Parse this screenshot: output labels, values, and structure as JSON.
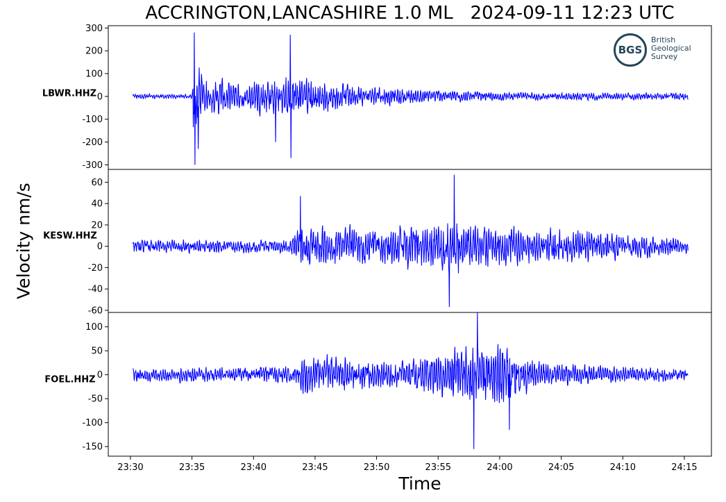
{
  "chart_data": {
    "type": "line",
    "title": "ACCRINGTON,LANCASHIRE 1.0 ML   2024-09-11 12:23 UTC",
    "xlabel": "Time",
    "ylabel": "Velocity nm/s",
    "x_ticks": [
      "23:30",
      "23:35",
      "23:40",
      "23:45",
      "23:50",
      "23:55",
      "24:00",
      "24:05",
      "24:10",
      "24:15"
    ],
    "x_range_minutes": [
      -1.8,
      47.2
    ],
    "trace_range_minutes": [
      0.2,
      45.3
    ],
    "line_color": "#0000ff",
    "grid": false,
    "panels": [
      {
        "station": "LBWR.HHZ",
        "ylim": [
          -320,
          310
        ],
        "y_ticks": [
          300,
          200,
          100,
          0,
          -100,
          -200,
          -300
        ],
        "envelope": [
          {
            "t": 0.2,
            "amp": 15
          },
          {
            "t": 5.0,
            "amp": 12
          },
          {
            "t": 5.1,
            "amp": 250
          },
          {
            "t": 6.0,
            "amp": 120
          },
          {
            "t": 9.0,
            "amp": 90
          },
          {
            "t": 13.0,
            "amp": 130
          },
          {
            "t": 18.0,
            "amp": 70
          },
          {
            "t": 24.0,
            "amp": 40
          },
          {
            "t": 30.0,
            "amp": 25
          },
          {
            "t": 40.0,
            "amp": 20
          },
          {
            "t": 45.3,
            "amp": 22
          }
        ],
        "spikes": [
          {
            "t": 5.2,
            "v": 280
          },
          {
            "t": 5.25,
            "v": -300
          },
          {
            "t": 5.5,
            "v": -230
          },
          {
            "t": 13.0,
            "v": 270
          },
          {
            "t": 13.05,
            "v": -270
          },
          {
            "t": 11.8,
            "v": -200
          }
        ]
      },
      {
        "station": "KESW.HHZ",
        "ylim": [
          -62,
          72
        ],
        "y_ticks": [
          60,
          40,
          20,
          0,
          -20,
          -40,
          -60
        ],
        "envelope": [
          {
            "t": 0.2,
            "amp": 8
          },
          {
            "t": 13.0,
            "amp": 9
          },
          {
            "t": 13.6,
            "amp": 25
          },
          {
            "t": 20.0,
            "amp": 22
          },
          {
            "t": 26.0,
            "amp": 35
          },
          {
            "t": 30.0,
            "amp": 25
          },
          {
            "t": 36.0,
            "amp": 20
          },
          {
            "t": 45.3,
            "amp": 10
          }
        ],
        "spikes": [
          {
            "t": 13.8,
            "v": 47
          },
          {
            "t": 26.3,
            "v": 67
          },
          {
            "t": 25.9,
            "v": -57
          }
        ]
      },
      {
        "station": "FOEL.HHZ",
        "ylim": [
          -170,
          130
        ],
        "y_ticks": [
          100,
          50,
          0,
          -50,
          -100,
          -150
        ],
        "envelope": [
          {
            "t": 0.2,
            "amp": 20
          },
          {
            "t": 13.5,
            "amp": 25
          },
          {
            "t": 13.7,
            "amp": 60
          },
          {
            "t": 22.0,
            "amp": 35
          },
          {
            "t": 27.0,
            "amp": 80
          },
          {
            "t": 30.0,
            "amp": 90
          },
          {
            "t": 33.0,
            "amp": 35
          },
          {
            "t": 45.3,
            "amp": 15
          }
        ],
        "spikes": [
          {
            "t": 28.2,
            "v": 130
          },
          {
            "t": 27.9,
            "v": -155
          },
          {
            "t": 30.8,
            "v": -115
          }
        ]
      }
    ]
  },
  "logo": {
    "abbr": "BGS",
    "lines": [
      "British",
      "Geological",
      "Survey"
    ],
    "color": "#23455a"
  }
}
